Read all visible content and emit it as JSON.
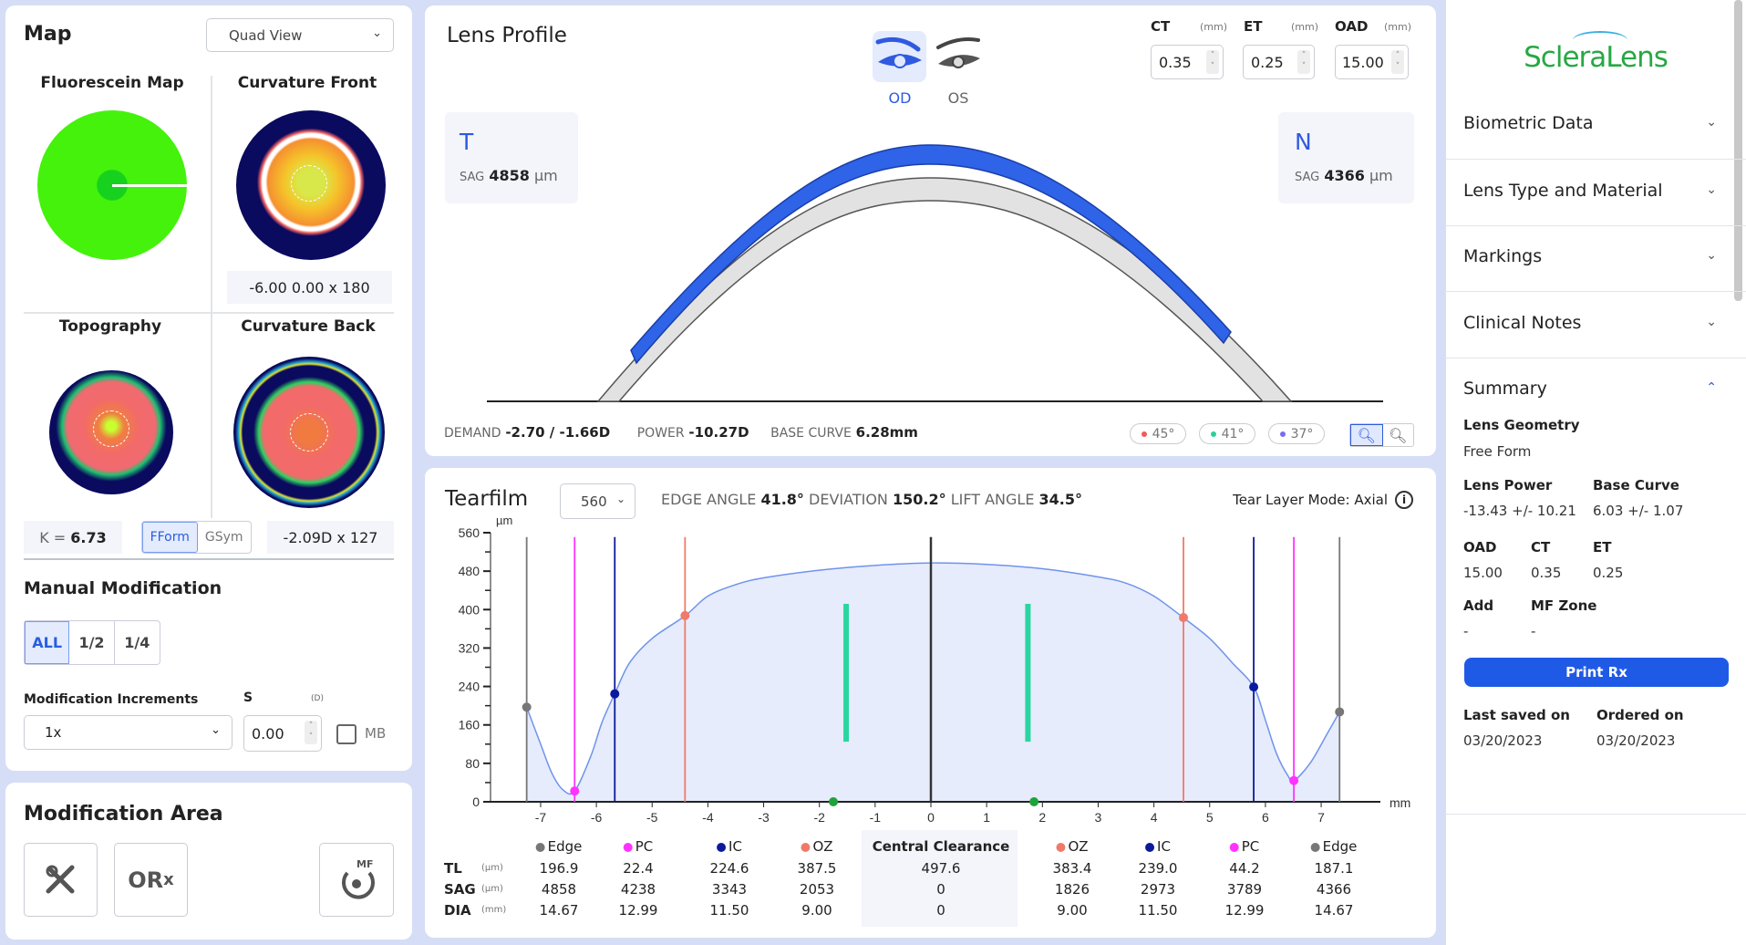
{
  "map": {
    "title": "Map",
    "view_select": "Quad View",
    "quadrants": {
      "fluorescein": "Fluorescein Map",
      "curv_front": "Curvature Front",
      "topography": "Topography",
      "curv_back": "Curvature Back"
    },
    "curv_front_value": "-6.00 0.00 x 180",
    "k_label": "K =",
    "k_value": "6.73",
    "fform": "FForm",
    "gsym": "GSym",
    "curv_back_value": "-2.09D x 127"
  },
  "manual": {
    "title": "Manual Modification",
    "segments": [
      "ALL",
      "1/2",
      "1/4"
    ],
    "increments_label": "Modification Increments",
    "increments_value": "1x",
    "s_label": "S",
    "s_unit": "(D)",
    "s_value": "0.00",
    "mb_label": "MB"
  },
  "mod_area": {
    "title": "Modification Area",
    "orx": "OR",
    "orx_sub": "x",
    "mf": "MF"
  },
  "lens": {
    "title": "Lens Profile",
    "od": "OD",
    "os": "OS",
    "ct_label": "CT",
    "ct_unit": "(mm)",
    "ct_value": "0.35",
    "et_label": "ET",
    "et_unit": "(mm)",
    "et_value": "0.25",
    "oad_label": "OAD",
    "oad_unit": "(mm)",
    "oad_value": "15.00",
    "t_letter": "T",
    "t_sag_label": "SAG",
    "t_sag_value": "4858",
    "t_sag_unit": "µm",
    "n_letter": "N",
    "n_sag_label": "SAG",
    "n_sag_value": "4366",
    "n_sag_unit": "µm",
    "demand_label": "DEMAND",
    "demand_value": "-2.70 / -1.66D",
    "power_label": "POWER",
    "power_value": "-10.27D",
    "bc_label": "BASE CURVE",
    "bc_value": "6.28mm",
    "angles": [
      {
        "label": "45°",
        "color": "#f05a5a"
      },
      {
        "label": "41°",
        "color": "#2ccf9a"
      },
      {
        "label": "37°",
        "color": "#7a6cf0"
      }
    ]
  },
  "tearfilm": {
    "title": "Tearfilm",
    "scale_select": "560",
    "edge_angle_label": "EDGE ANGLE",
    "edge_angle": "41.8°",
    "deviation_label": "DEVIATION",
    "deviation": "150.2°",
    "lift_angle_label": "LIFT ANGLE",
    "lift_angle": "34.5°",
    "mode": "Tear Layer Mode: Axial",
    "table": {
      "headers": [
        "Edge",
        "PC",
        "IC",
        "OZ",
        "Central Clearance",
        "OZ",
        "IC",
        "PC",
        "Edge"
      ],
      "header_colors": [
        "#777777",
        "#ff33ff",
        "#0b1a9c",
        "#f07a6a",
        "",
        "#f07a6a",
        "#0b1a9c",
        "#ff33ff",
        "#777777"
      ],
      "rows": [
        {
          "label": "TL",
          "unit": "(µm)",
          "values": [
            "196.9",
            "22.4",
            "224.6",
            "387.5",
            "497.6",
            "383.4",
            "239.0",
            "44.2",
            "187.1"
          ]
        },
        {
          "label": "SAG",
          "unit": "(µm)",
          "values": [
            "4858",
            "4238",
            "3343",
            "2053",
            "0",
            "1826",
            "2973",
            "3789",
            "4366"
          ]
        },
        {
          "label": "DIA",
          "unit": "(mm)",
          "values": [
            "14.67",
            "12.99",
            "11.50",
            "9.00",
            "0",
            "9.00",
            "11.50",
            "12.99",
            "14.67"
          ]
        }
      ]
    }
  },
  "chart_data": {
    "type": "area",
    "title": "Tearfilm",
    "xlabel": "mm",
    "ylabel": "µm",
    "xlim": [
      -7.5,
      7.5
    ],
    "ylim": [
      0,
      560
    ],
    "xticks": [
      -7,
      -6,
      -5,
      -4,
      -3,
      -2,
      -1,
      0,
      1,
      2,
      3,
      4,
      5,
      6,
      7
    ],
    "yticks": [
      0,
      80,
      160,
      240,
      320,
      400,
      480,
      560
    ],
    "series": [
      {
        "name": "Tear layer",
        "x": [
          -7.25,
          -7.0,
          -6.8,
          -6.6,
          -6.39,
          -6.1,
          -5.9,
          -5.67,
          -5.4,
          -5.0,
          -4.41,
          -4.0,
          -3.5,
          -3.0,
          -2.0,
          -1.0,
          0,
          1.0,
          2.0,
          3.0,
          3.5,
          4.0,
          4.53,
          5.0,
          5.4,
          5.79,
          6.0,
          6.2,
          6.4,
          6.51,
          6.8,
          7.1,
          7.33
        ],
        "y": [
          197,
          120,
          60,
          25,
          22,
          95,
          165,
          225,
          290,
          340,
          387,
          428,
          452,
          466,
          482,
          492,
          497,
          494,
          485,
          468,
          455,
          428,
          383,
          340,
          290,
          239,
          170,
          100,
          55,
          44,
          80,
          140,
          187
        ]
      }
    ],
    "markers": [
      {
        "name": "Edge",
        "x": -7.25,
        "y": 196.9,
        "color": "#777777"
      },
      {
        "name": "PC",
        "x": -6.39,
        "y": 22.4,
        "color": "#ff33ff"
      },
      {
        "name": "IC",
        "x": -5.67,
        "y": 224.6,
        "color": "#0b1a9c"
      },
      {
        "name": "OZ",
        "x": -4.41,
        "y": 387.5,
        "color": "#f07a6a"
      },
      {
        "name": "Center",
        "x": 0,
        "y": null,
        "color": "#333333"
      },
      {
        "name": "OZ",
        "x": 4.53,
        "y": 383.4,
        "color": "#f07a6a"
      },
      {
        "name": "IC",
        "x": 5.79,
        "y": 239.0,
        "color": "#0b1a9c"
      },
      {
        "name": "PC",
        "x": 6.51,
        "y": 44.2,
        "color": "#ff33ff"
      },
      {
        "name": "Edge",
        "x": 7.33,
        "y": 187.1,
        "color": "#777777"
      }
    ],
    "bars": [
      {
        "x": -1.52,
        "y0": 125,
        "y1": 412,
        "color": "#2ad6a0"
      },
      {
        "x": 1.74,
        "y0": 125,
        "y1": 412,
        "color": "#2ad6a0"
      }
    ],
    "axis_points": [
      {
        "x": -1.75,
        "y": 0,
        "color": "#1ea33a"
      },
      {
        "x": 1.85,
        "y": 0,
        "color": "#1ea33a"
      }
    ],
    "grid": false
  },
  "sidebar": {
    "logo": "ScleraLens",
    "logo_color": "#27a844",
    "sections": [
      "Biometric Data",
      "Lens Type and Material",
      "Markings",
      "Clinical Notes",
      "Summary"
    ],
    "summary": {
      "geometry_label": "Lens Geometry",
      "geometry_value": "Free Form",
      "power_label": "Lens Power",
      "power_value": "-13.43 +/- 10.21",
      "bc_label": "Base Curve",
      "bc_value": "6.03 +/- 1.07",
      "oad_label": "OAD",
      "oad_value": "15.00",
      "ct_label": "CT",
      "ct_value": "0.35",
      "et_label": "ET",
      "et_value": "0.25",
      "add_label": "Add",
      "add_value": "-",
      "mf_label": "MF Zone",
      "mf_value": "-",
      "print_button": "Print Rx",
      "saved_label": "Last saved on",
      "saved_value": "03/20/2023",
      "ordered_label": "Ordered on",
      "ordered_value": "03/20/2023"
    },
    "accent": "#1f5ae6"
  }
}
